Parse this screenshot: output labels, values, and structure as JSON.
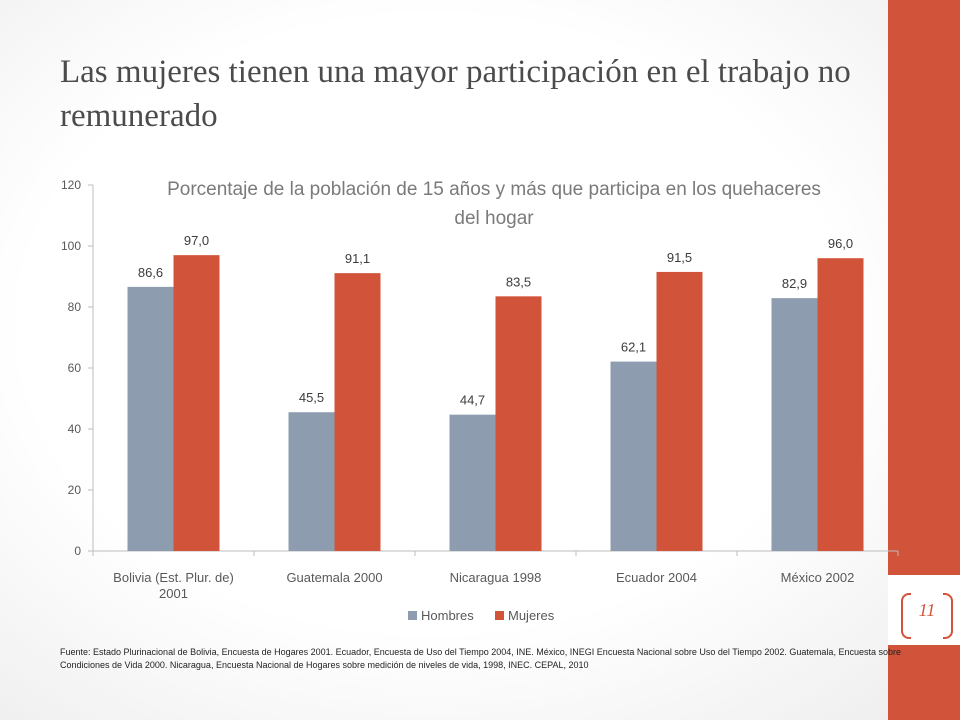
{
  "slide": {
    "title": "Las mujeres tienen una mayor participación en el trabajo no remunerado",
    "page_number": "11",
    "source": "Fuente: Estado Plurinacional de  Bolivia, Encuesta de Hogares 2001.  Ecuador, Encuesta de Uso del Tiempo 2004, INE. México, INEGI Encuesta Nacional sobre Uso del Tiempo 2002. Guatemala, Encuesta sobre Condiciones de Vida 2000. Nicaragua, Encuesta Nacional de Hogares sobre medición de niveles de vida, 1998, INEC. CEPAL, 2010"
  },
  "colors": {
    "accent": "#d0533a",
    "hombres": "#8d9cae",
    "mujeres": "#d0533a"
  },
  "chart_data": {
    "type": "bar",
    "title": "Porcentaje de la población de 15 años y más que participa en los quehaceres del hogar",
    "categories": [
      "Bolivia (Est. Plur. de)\n2001",
      "Guatemala 2000",
      "Nicaragua 1998",
      "Ecuador 2004",
      "México 2002"
    ],
    "series": [
      {
        "name": "Hombres",
        "values": [
          86.6,
          45.5,
          44.7,
          62.1,
          82.9
        ],
        "labels": [
          "86,6",
          "45,5",
          "44,7",
          "62,1",
          "82,9"
        ],
        "color": "#8d9cae"
      },
      {
        "name": "Mujeres",
        "values": [
          97.0,
          91.1,
          83.5,
          91.5,
          96.0
        ],
        "labels": [
          "97,0",
          "91,1",
          "83,5",
          "91,5",
          "96,0"
        ],
        "color": "#d0533a"
      }
    ],
    "ylim": [
      0,
      120
    ],
    "yticks": [
      "0",
      "20",
      "40",
      "60",
      "80",
      "100",
      "120"
    ],
    "xlabel": "",
    "ylabel": "",
    "grid": false,
    "legend": "bottom"
  }
}
